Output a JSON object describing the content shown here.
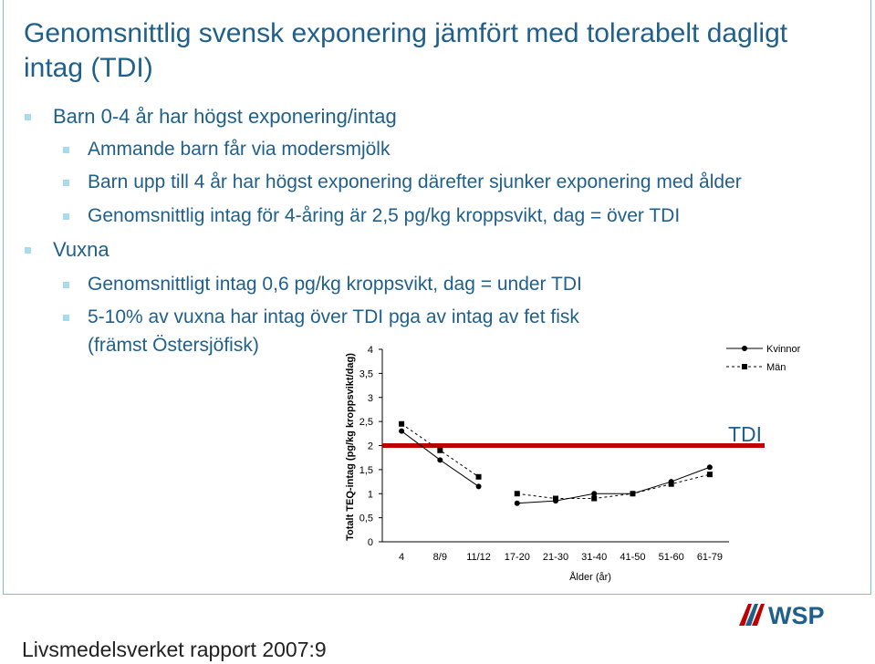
{
  "slide": {
    "title": "Genomsnittlig svensk exponering jämfört med tolerabelt dagligt intag (TDI)",
    "bullets": [
      {
        "text": "Barn 0-4 år har högst exponering/intag",
        "level": 1
      },
      {
        "text": "Ammande barn får via modersmjölk",
        "level": 2
      },
      {
        "text": "Barn upp till 4 år har högst exponering därefter sjunker exponering med ålder",
        "level": 2
      },
      {
        "text": "Genomsnittlig intag för 4-åring är 2,5 pg/kg kroppsvikt, dag = över TDI",
        "level": 2
      },
      {
        "text": "Vuxna",
        "level": 1
      },
      {
        "text": "Genomsnittligt intag 0,6 pg/kg kroppsvikt, dag = under TDI",
        "level": 2
      },
      {
        "text": "5-10% av vuxna har intag över TDI pga av intag av fet fisk",
        "level": 2
      },
      {
        "text": "(främst Östersjöfisk)",
        "level": 2,
        "continuation": true
      }
    ],
    "footer": "Livsmedelsverket rapport 2007:9",
    "logo_text": "WSP",
    "accent_color": "#1f5f8b",
    "bullet_color": "#a7dbf0"
  },
  "chart_data": {
    "type": "line",
    "xlabel": "Ålder (år)",
    "ylabel": "Totalt TEQ-intag (pg/kg kroppsvikt/dag)",
    "categories": [
      "4",
      "8/9",
      "11/12",
      "17-20",
      "21-30",
      "31-40",
      "41-50",
      "51-60",
      "61-79"
    ],
    "ylim": [
      0,
      4
    ],
    "yticks": [
      "0",
      "0,5",
      "1",
      "1,5",
      "2",
      "2,5",
      "3",
      "3,5",
      "4"
    ],
    "series": [
      {
        "name": "Kvinnor",
        "marker": "circle",
        "dash": "solid",
        "segments": [
          [
            0,
            2
          ],
          [
            3,
            8
          ]
        ],
        "values": [
          2.3,
          1.7,
          1.15,
          0.8,
          0.85,
          1.0,
          1.0,
          1.25,
          1.55
        ]
      },
      {
        "name": "Män",
        "marker": "square",
        "dash": "dashed",
        "segments": [
          [
            0,
            2
          ],
          [
            3,
            8
          ]
        ],
        "values": [
          2.45,
          1.9,
          1.35,
          1.0,
          0.9,
          0.9,
          1.0,
          1.2,
          1.4
        ]
      }
    ],
    "reference_line": {
      "label": "TDI",
      "value": 2,
      "color": "#c00000"
    },
    "legend_position": "top-right"
  }
}
